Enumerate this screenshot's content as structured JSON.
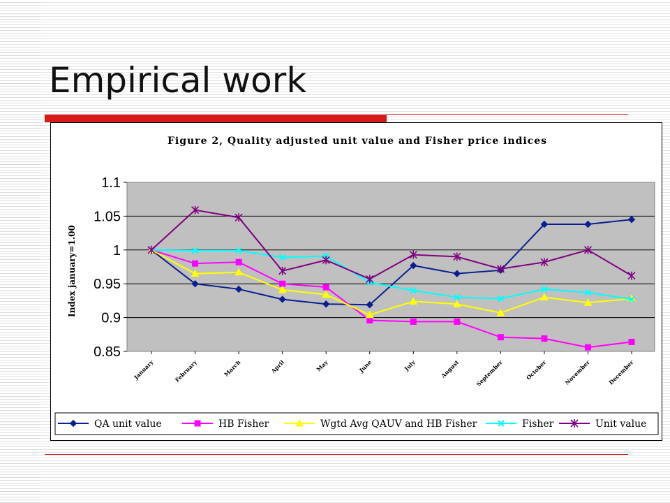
{
  "slide": {
    "title": "Empirical work",
    "accent_color": "#d91a1a"
  },
  "chart_data": {
    "type": "line",
    "title": "Figure 2, Quality adjusted unit value and Fisher price indices",
    "xlabel": "",
    "ylabel": "Index january=1.00",
    "ylim": [
      0.85,
      1.1
    ],
    "yticks": [
      "1.1",
      "1.05",
      "1",
      "0.95",
      "0.9",
      "0.85"
    ],
    "grid": true,
    "plot_background": "#c0c0c0",
    "legend_position": "bottom",
    "categories": [
      "January",
      "February",
      "March",
      "April",
      "May",
      "June",
      "July",
      "August",
      "September",
      "October",
      "November",
      "December"
    ],
    "series": [
      {
        "name": "QA unit value",
        "color": "#0a1f8f",
        "marker": "diamond",
        "values": [
          1.0,
          0.95,
          0.942,
          0.927,
          0.92,
          0.919,
          0.977,
          0.965,
          0.97,
          1.038,
          1.038,
          1.045
        ]
      },
      {
        "name": "HB Fisher",
        "color": "#ff00ff",
        "marker": "square",
        "values": [
          1.0,
          0.98,
          0.982,
          0.95,
          0.945,
          0.896,
          0.894,
          0.894,
          0.871,
          0.869,
          0.856,
          0.864
        ]
      },
      {
        "name": "Wgtd Avg QAUV and HB Fisher",
        "color": "#ffff00",
        "marker": "triangle",
        "values": [
          1.0,
          0.965,
          0.967,
          0.941,
          0.934,
          0.904,
          0.924,
          0.92,
          0.907,
          0.93,
          0.922,
          0.928
        ]
      },
      {
        "name": "Fisher",
        "color": "#00ffff",
        "marker": "x",
        "values": [
          1.0,
          0.999,
          0.999,
          0.989,
          0.991,
          0.952,
          0.94,
          0.93,
          0.928,
          0.942,
          0.937,
          0.927
        ]
      },
      {
        "name": "Unit value",
        "color": "#800080",
        "marker": "star",
        "values": [
          1.0,
          1.059,
          1.048,
          0.969,
          0.985,
          0.957,
          0.993,
          0.99,
          0.972,
          0.982,
          1.0,
          0.962
        ]
      }
    ]
  }
}
